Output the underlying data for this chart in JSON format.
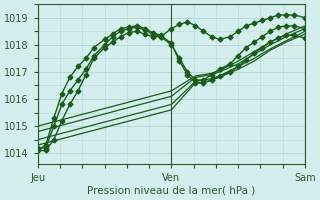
{
  "xlabel": "Pression niveau de la mer( hPa )",
  "background_color": "#d4eeed",
  "grid_color": "#b8d8d8",
  "line_color": "#1a5c1a",
  "axis_color": "#2a5a2a",
  "ylim": [
    1013.6,
    1019.5
  ],
  "yticks": [
    1014,
    1015,
    1016,
    1017,
    1018,
    1019
  ],
  "day_labels": [
    "Jeu",
    "Ven",
    "Sam"
  ],
  "day_positions": [
    0.0,
    0.5,
    1.0
  ],
  "series": [
    {
      "x": [
        0.0,
        0.03,
        0.06,
        0.09,
        0.12,
        0.15,
        0.18,
        0.21,
        0.25,
        0.28,
        0.31,
        0.34,
        0.37,
        0.4,
        0.43,
        0.46,
        0.5,
        0.53,
        0.56,
        0.59,
        0.62,
        0.65,
        0.68,
        0.72,
        0.75,
        0.78,
        0.81,
        0.84,
        0.87,
        0.9,
        0.93,
        0.96,
        1.0
      ],
      "y": [
        1014.1,
        1014.1,
        1014.5,
        1015.2,
        1015.8,
        1016.3,
        1016.9,
        1017.5,
        1017.9,
        1018.1,
        1018.3,
        1018.45,
        1018.5,
        1018.4,
        1018.3,
        1018.3,
        1018.6,
        1018.75,
        1018.85,
        1018.7,
        1018.5,
        1018.3,
        1018.2,
        1018.3,
        1018.5,
        1018.7,
        1018.8,
        1018.9,
        1019.0,
        1019.1,
        1019.1,
        1019.1,
        1019.0
      ],
      "marker": true,
      "lw": 1.0
    },
    {
      "x": [
        0.0,
        0.03,
        0.06,
        0.09,
        0.12,
        0.15,
        0.18,
        0.21,
        0.25,
        0.28,
        0.31,
        0.34,
        0.37,
        0.4,
        0.43,
        0.46,
        0.5,
        0.53,
        0.56,
        0.59,
        0.62,
        0.65,
        0.68,
        0.72,
        0.75,
        0.78,
        0.81,
        0.84,
        0.87,
        0.9,
        0.93,
        0.96,
        1.0
      ],
      "y": [
        1014.2,
        1014.2,
        1015.0,
        1015.8,
        1016.3,
        1016.7,
        1017.1,
        1017.6,
        1018.0,
        1018.3,
        1018.5,
        1018.6,
        1018.65,
        1018.55,
        1018.4,
        1018.3,
        1018.0,
        1017.5,
        1017.0,
        1016.7,
        1016.7,
        1016.9,
        1017.1,
        1017.3,
        1017.6,
        1017.9,
        1018.1,
        1018.3,
        1018.5,
        1018.65,
        1018.7,
        1018.7,
        1018.6
      ],
      "marker": true,
      "lw": 1.0
    },
    {
      "x": [
        0.0,
        0.5,
        0.59,
        0.62,
        0.65,
        0.68,
        0.75,
        0.81,
        0.87,
        0.93,
        1.0
      ],
      "y": [
        1014.3,
        1015.6,
        1016.6,
        1016.6,
        1016.7,
        1016.8,
        1017.1,
        1017.4,
        1017.8,
        1018.1,
        1018.4
      ],
      "marker": false,
      "lw": 0.9
    },
    {
      "x": [
        0.0,
        0.5,
        0.59,
        0.62,
        0.65,
        0.68,
        0.75,
        0.81,
        0.87,
        0.93,
        1.0
      ],
      "y": [
        1014.5,
        1015.8,
        1016.65,
        1016.7,
        1016.75,
        1016.85,
        1017.2,
        1017.5,
        1017.85,
        1018.15,
        1018.5
      ],
      "marker": false,
      "lw": 0.9
    },
    {
      "x": [
        0.0,
        0.5,
        0.59,
        0.62,
        0.65,
        0.68,
        0.75,
        0.81,
        0.87,
        0.93,
        1.0
      ],
      "y": [
        1014.8,
        1016.1,
        1016.8,
        1016.85,
        1016.9,
        1017.0,
        1017.3,
        1017.65,
        1018.0,
        1018.3,
        1018.6
      ],
      "marker": false,
      "lw": 0.9
    },
    {
      "x": [
        0.0,
        0.5,
        0.59,
        0.62,
        0.65,
        0.68,
        0.75,
        0.81,
        0.87,
        0.93,
        1.0
      ],
      "y": [
        1015.0,
        1016.3,
        1016.85,
        1016.9,
        1016.95,
        1017.05,
        1017.4,
        1017.75,
        1018.1,
        1018.4,
        1018.7
      ],
      "marker": false,
      "lw": 0.9
    },
    {
      "x": [
        0.0,
        0.03,
        0.06,
        0.09,
        0.12,
        0.15,
        0.18,
        0.21,
        0.25,
        0.28,
        0.31,
        0.34,
        0.37,
        0.4,
        0.43,
        0.46,
        0.5,
        0.53,
        0.56,
        0.59,
        0.62,
        0.65,
        0.68,
        0.72,
        0.75,
        0.78,
        0.81,
        0.84,
        0.87,
        0.9,
        0.93,
        0.96,
        1.0
      ],
      "y": [
        1014.1,
        1014.3,
        1015.3,
        1016.2,
        1016.8,
        1017.2,
        1017.5,
        1017.9,
        1018.2,
        1018.4,
        1018.6,
        1018.65,
        1018.7,
        1018.6,
        1018.45,
        1018.35,
        1018.05,
        1017.4,
        1016.9,
        1016.6,
        1016.6,
        1016.7,
        1016.85,
        1017.0,
        1017.2,
        1017.45,
        1017.7,
        1017.9,
        1018.1,
        1018.25,
        1018.35,
        1018.35,
        1018.25
      ],
      "marker": true,
      "lw": 1.0
    }
  ],
  "marker_style": "D",
  "marker_size": 2.5,
  "xlabel_fontsize": 7.5,
  "tick_fontsize": 7
}
